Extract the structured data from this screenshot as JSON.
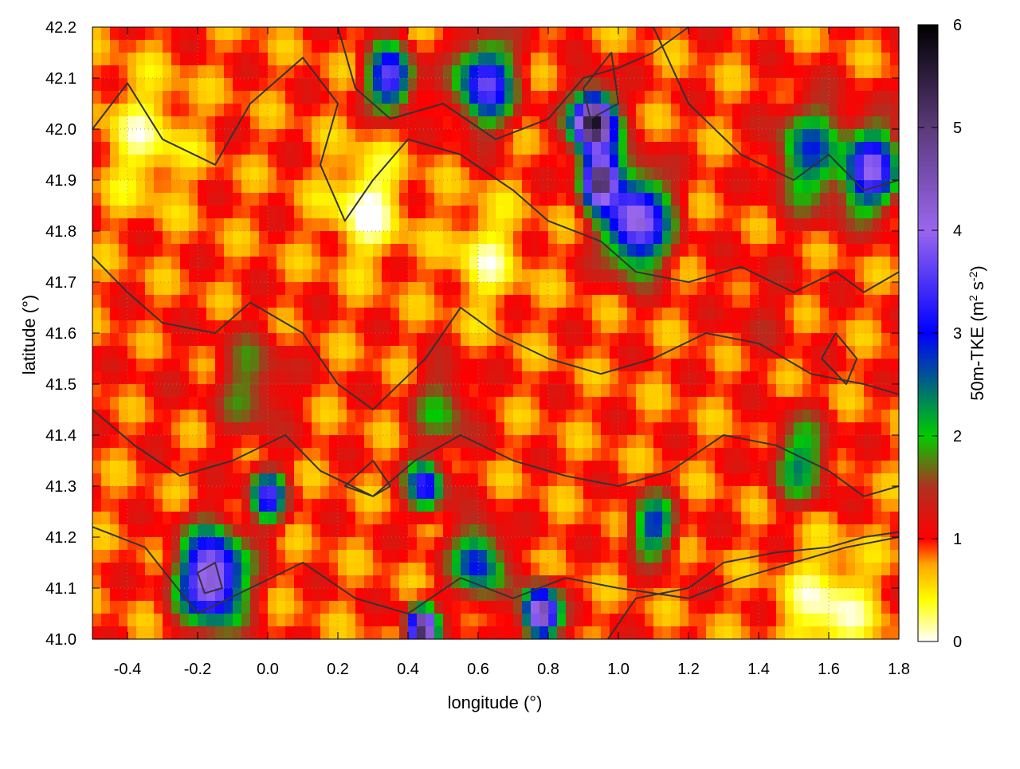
{
  "chart_data": {
    "type": "heatmap",
    "title": "",
    "xlabel": "longitude (°)",
    "ylabel": "latitude (°)",
    "xlim": [
      -0.5,
      1.8
    ],
    "ylim": [
      41.0,
      42.2
    ],
    "x_ticks": [
      {
        "value": -0.4,
        "label": "-0.4"
      },
      {
        "value": -0.2,
        "label": "-0.2"
      },
      {
        "value": 0.0,
        "label": "0.0"
      },
      {
        "value": 0.2,
        "label": "0.2"
      },
      {
        "value": 0.4,
        "label": "0.4"
      },
      {
        "value": 0.6,
        "label": "0.6"
      },
      {
        "value": 0.8,
        "label": "0.8"
      },
      {
        "value": 1.0,
        "label": "1.0"
      },
      {
        "value": 1.2,
        "label": "1.2"
      },
      {
        "value": 1.4,
        "label": "1.4"
      },
      {
        "value": 1.6,
        "label": "1.6"
      },
      {
        "value": 1.8,
        "label": "1.8"
      }
    ],
    "y_ticks": [
      {
        "value": 41.0,
        "label": "41.0"
      },
      {
        "value": 41.1,
        "label": "41.1"
      },
      {
        "value": 41.2,
        "label": "41.2"
      },
      {
        "value": 41.3,
        "label": "41.3"
      },
      {
        "value": 41.4,
        "label": "41.4"
      },
      {
        "value": 41.5,
        "label": "41.5"
      },
      {
        "value": 41.6,
        "label": "41.6"
      },
      {
        "value": 41.7,
        "label": "41.7"
      },
      {
        "value": 41.8,
        "label": "41.8"
      },
      {
        "value": 41.9,
        "label": "41.9"
      },
      {
        "value": 42.0,
        "label": "42.0"
      },
      {
        "value": 42.1,
        "label": "42.1"
      },
      {
        "value": 42.2,
        "label": "42.2"
      }
    ],
    "grid": true,
    "colorbar": {
      "label_parts": [
        "50m-TKE (m",
        "2",
        " s",
        "-2",
        ")"
      ],
      "range": [
        0,
        6
      ],
      "ticks": [
        {
          "value": 0,
          "label": "0"
        },
        {
          "value": 1,
          "label": "1"
        },
        {
          "value": 2,
          "label": "2"
        },
        {
          "value": 3,
          "label": "3"
        },
        {
          "value": 4,
          "label": "4"
        },
        {
          "value": 5,
          "label": "5"
        },
        {
          "value": 6,
          "label": "6"
        }
      ],
      "stops": [
        {
          "value": 0.0,
          "color": "#ffffff"
        },
        {
          "value": 0.4,
          "color": "#ffff00"
        },
        {
          "value": 0.75,
          "color": "#ffa500"
        },
        {
          "value": 1.0,
          "color": "#ff0000"
        },
        {
          "value": 1.5,
          "color": "#b03020"
        },
        {
          "value": 2.0,
          "color": "#00cc00"
        },
        {
          "value": 3.0,
          "color": "#0000ff"
        },
        {
          "value": 4.0,
          "color": "#9966ee"
        },
        {
          "value": 5.0,
          "color": "#5a3a7a"
        },
        {
          "value": 6.0,
          "color": "#000000"
        }
      ]
    },
    "field_hotspots": [
      {
        "lon": -0.16,
        "lat": 41.12,
        "value": 4.5,
        "spread": 0.09
      },
      {
        "lon": 0.93,
        "lat": 42.01,
        "value": 5.8,
        "spread": 0.06
      },
      {
        "lon": 0.95,
        "lat": 41.9,
        "value": 5.6,
        "spread": 0.05
      },
      {
        "lon": 1.05,
        "lat": 41.82,
        "value": 4.2,
        "spread": 0.09
      },
      {
        "lon": 0.62,
        "lat": 42.09,
        "value": 3.6,
        "spread": 0.08
      },
      {
        "lon": 0.35,
        "lat": 42.1,
        "value": 3.8,
        "spread": 0.06
      },
      {
        "lon": 1.72,
        "lat": 41.92,
        "value": 3.8,
        "spread": 0.08
      },
      {
        "lon": 1.55,
        "lat": 41.95,
        "value": 2.6,
        "spread": 0.1
      },
      {
        "lon": 0.78,
        "lat": 41.05,
        "value": 4.8,
        "spread": 0.05
      },
      {
        "lon": 0.44,
        "lat": 41.02,
        "value": 5.2,
        "spread": 0.04
      },
      {
        "lon": 0.0,
        "lat": 41.28,
        "value": 3.3,
        "spread": 0.05
      },
      {
        "lon": 0.45,
        "lat": 41.3,
        "value": 3.4,
        "spread": 0.05
      },
      {
        "lon": 0.6,
        "lat": 41.15,
        "value": 3.0,
        "spread": 0.07
      },
      {
        "lon": 1.1,
        "lat": 41.22,
        "value": 2.8,
        "spread": 0.06
      },
      {
        "lon": 1.52,
        "lat": 41.35,
        "value": 2.3,
        "spread": 0.08
      },
      {
        "lon": -0.05,
        "lat": 41.5,
        "value": 1.8,
        "spread": 0.1
      },
      {
        "lon": 0.5,
        "lat": 41.45,
        "value": 1.9,
        "spread": 0.08
      },
      {
        "lon": 0.28,
        "lat": 41.85,
        "value": 0.05,
        "spread": 0.1
      },
      {
        "lon": 1.6,
        "lat": 41.05,
        "value": 0.1,
        "spread": 0.12
      },
      {
        "lon": 0.62,
        "lat": 41.75,
        "value": 0.3,
        "spread": 0.1
      },
      {
        "lon": -0.35,
        "lat": 41.98,
        "value": 0.3,
        "spread": 0.12
      },
      {
        "lon": -0.3,
        "lat": 41.5,
        "value": 1.0,
        "spread": 0.12
      },
      {
        "lon": 1.4,
        "lat": 41.65,
        "value": 1.2,
        "spread": 0.1
      }
    ],
    "field_background": 0.9,
    "contours": [
      [
        [
          -0.5,
          42.0
        ],
        [
          -0.4,
          42.09
        ],
        [
          -0.3,
          41.98
        ],
        [
          -0.15,
          41.93
        ],
        [
          -0.05,
          42.05
        ],
        [
          0.1,
          42.14
        ],
        [
          0.2,
          42.05
        ],
        [
          0.15,
          41.93
        ],
        [
          0.22,
          41.82
        ],
        [
          0.3,
          41.9
        ],
        [
          0.4,
          41.98
        ],
        [
          0.55,
          41.95
        ],
        [
          0.7,
          41.88
        ],
        [
          0.8,
          41.82
        ],
        [
          0.95,
          41.78
        ],
        [
          1.05,
          41.72
        ],
        [
          1.2,
          41.7
        ],
        [
          1.35,
          41.73
        ],
        [
          1.5,
          41.68
        ],
        [
          1.62,
          41.72
        ],
        [
          1.7,
          41.68
        ],
        [
          1.8,
          41.72
        ]
      ],
      [
        [
          -0.5,
          41.75
        ],
        [
          -0.4,
          41.68
        ],
        [
          -0.3,
          41.62
        ],
        [
          -0.15,
          41.6
        ],
        [
          -0.05,
          41.66
        ],
        [
          0.1,
          41.6
        ],
        [
          0.2,
          41.5
        ],
        [
          0.3,
          41.45
        ],
        [
          0.45,
          41.55
        ],
        [
          0.55,
          41.65
        ],
        [
          0.65,
          41.6
        ],
        [
          0.8,
          41.55
        ],
        [
          0.95,
          41.52
        ],
        [
          1.1,
          41.55
        ],
        [
          1.25,
          41.6
        ],
        [
          1.4,
          41.58
        ],
        [
          1.55,
          41.52
        ],
        [
          1.7,
          41.5
        ],
        [
          1.8,
          41.48
        ]
      ],
      [
        [
          -0.5,
          41.45
        ],
        [
          -0.38,
          41.38
        ],
        [
          -0.25,
          41.32
        ],
        [
          -0.1,
          41.35
        ],
        [
          0.05,
          41.4
        ],
        [
          0.15,
          41.33
        ],
        [
          0.3,
          41.28
        ],
        [
          0.42,
          41.35
        ],
        [
          0.55,
          41.4
        ],
        [
          0.7,
          41.35
        ],
        [
          0.85,
          41.32
        ],
        [
          1.0,
          41.3
        ],
        [
          1.15,
          41.33
        ],
        [
          1.3,
          41.4
        ],
        [
          1.45,
          41.38
        ],
        [
          1.6,
          41.33
        ],
        [
          1.7,
          41.28
        ],
        [
          1.8,
          41.3
        ]
      ],
      [
        [
          -0.5,
          41.22
        ],
        [
          -0.35,
          41.18
        ],
        [
          -0.2,
          41.05
        ],
        [
          -0.05,
          41.1
        ],
        [
          0.1,
          41.15
        ],
        [
          0.25,
          41.08
        ],
        [
          0.4,
          41.05
        ],
        [
          0.55,
          41.12
        ],
        [
          0.7,
          41.08
        ],
        [
          0.85,
          41.12
        ],
        [
          1.0,
          41.1
        ],
        [
          1.2,
          41.08
        ],
        [
          1.35,
          41.12
        ],
        [
          1.5,
          41.15
        ],
        [
          1.65,
          41.18
        ],
        [
          1.8,
          41.2
        ]
      ],
      [
        [
          0.97,
          41.0
        ],
        [
          1.05,
          41.08
        ],
        [
          1.2,
          41.1
        ],
        [
          1.3,
          41.15
        ],
        [
          1.45,
          41.17
        ],
        [
          1.6,
          41.18
        ],
        [
          1.7,
          41.2
        ],
        [
          1.8,
          41.21
        ]
      ],
      [
        [
          0.2,
          42.2
        ],
        [
          0.25,
          42.08
        ],
        [
          0.35,
          42.02
        ],
        [
          0.5,
          42.05
        ],
        [
          0.65,
          41.98
        ],
        [
          0.8,
          42.02
        ],
        [
          0.9,
          42.1
        ],
        [
          1.0,
          42.12
        ],
        [
          1.1,
          42.15
        ],
        [
          1.2,
          42.2
        ]
      ],
      [
        [
          1.1,
          42.2
        ],
        [
          1.2,
          42.05
        ],
        [
          1.35,
          41.95
        ],
        [
          1.5,
          41.9
        ],
        [
          1.6,
          41.95
        ],
        [
          1.7,
          41.88
        ],
        [
          1.8,
          41.9
        ]
      ],
      [
        [
          0.9,
          42.08
        ],
        [
          0.98,
          42.15
        ],
        [
          1.0,
          42.05
        ],
        [
          0.92,
          42.02
        ],
        [
          0.9,
          42.08
        ]
      ],
      [
        [
          0.3,
          41.35
        ],
        [
          0.35,
          41.3
        ],
        [
          0.3,
          41.28
        ],
        [
          0.22,
          41.3
        ],
        [
          0.3,
          41.35
        ]
      ],
      [
        [
          -0.2,
          41.13
        ],
        [
          -0.15,
          41.15
        ],
        [
          -0.13,
          41.1
        ],
        [
          -0.18,
          41.09
        ],
        [
          -0.2,
          41.13
        ]
      ],
      [
        [
          1.62,
          41.6
        ],
        [
          1.68,
          41.55
        ],
        [
          1.65,
          41.5
        ],
        [
          1.58,
          41.55
        ],
        [
          1.62,
          41.6
        ]
      ]
    ]
  }
}
